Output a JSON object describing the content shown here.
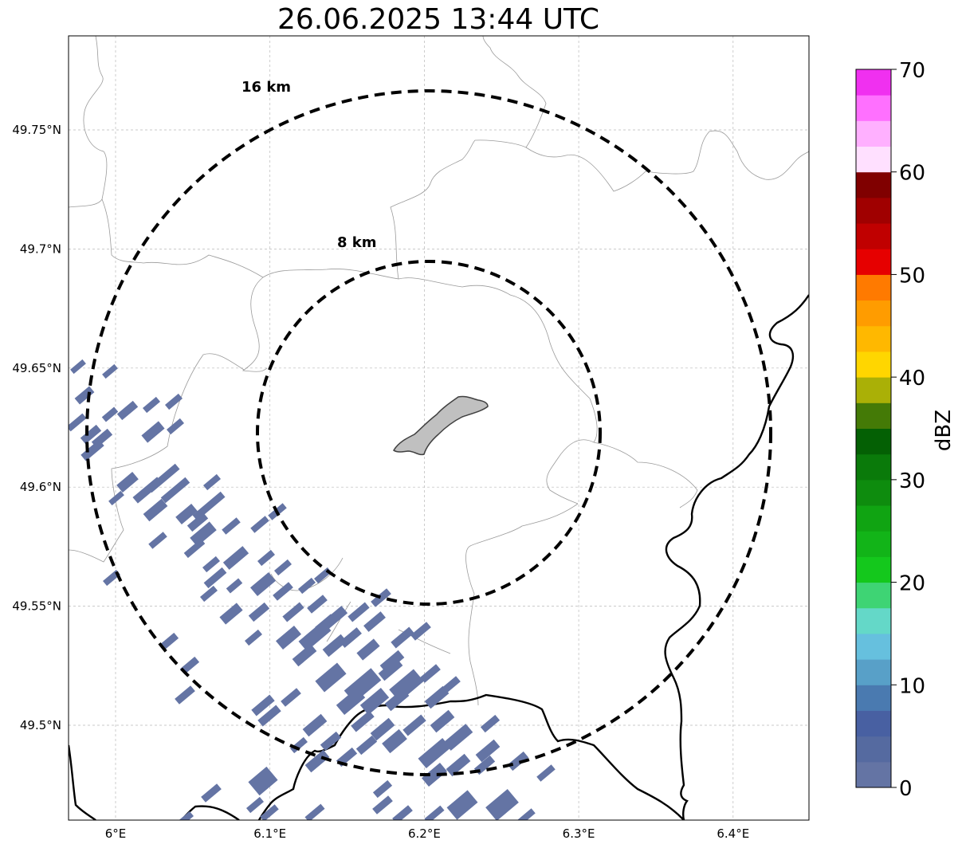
{
  "title": "26.06.2025 13:44 UTC",
  "map": {
    "lon_ticks": [
      {
        "value": 6.0,
        "label": "6°E"
      },
      {
        "value": 6.1,
        "label": "6.1°E"
      },
      {
        "value": 6.2,
        "label": "6.2°E"
      },
      {
        "value": 6.3,
        "label": "6.3°E"
      },
      {
        "value": 6.4,
        "label": "6.4°E"
      }
    ],
    "lat_ticks": [
      {
        "value": 49.75,
        "label": "49.75°N"
      },
      {
        "value": 49.7,
        "label": "49.7°N"
      },
      {
        "value": 49.65,
        "label": "49.65°N"
      },
      {
        "value": 49.6,
        "label": "49.6°N"
      },
      {
        "value": 49.55,
        "label": "49.55°N"
      },
      {
        "value": 49.5,
        "label": "49.5°N"
      }
    ],
    "rings": [
      {
        "label": "8 km"
      },
      {
        "label": "16 km"
      }
    ],
    "gridlines": true
  },
  "colorbar": {
    "label": "dBZ",
    "ticks": [
      "0",
      "10",
      "20",
      "30",
      "40",
      "50",
      "60",
      "70"
    ],
    "colors": [
      "#6474a4",
      "#556aa0",
      "#4860a2",
      "#4a7ab0",
      "#58a0c8",
      "#66c0de",
      "#64d8c8",
      "#3ed474",
      "#14c81c",
      "#12b418",
      "#10a412",
      "#0e8c0e",
      "#0a7a0a",
      "#046004",
      "#447a06",
      "#aab006",
      "#ffd600",
      "#ffb800",
      "#ff9c00",
      "#ff7a00",
      "#e60000",
      "#c00000",
      "#a00000",
      "#800000",
      "#ffe0ff",
      "#ffb0ff",
      "#ff70ff",
      "#f030f0"
    ]
  }
}
